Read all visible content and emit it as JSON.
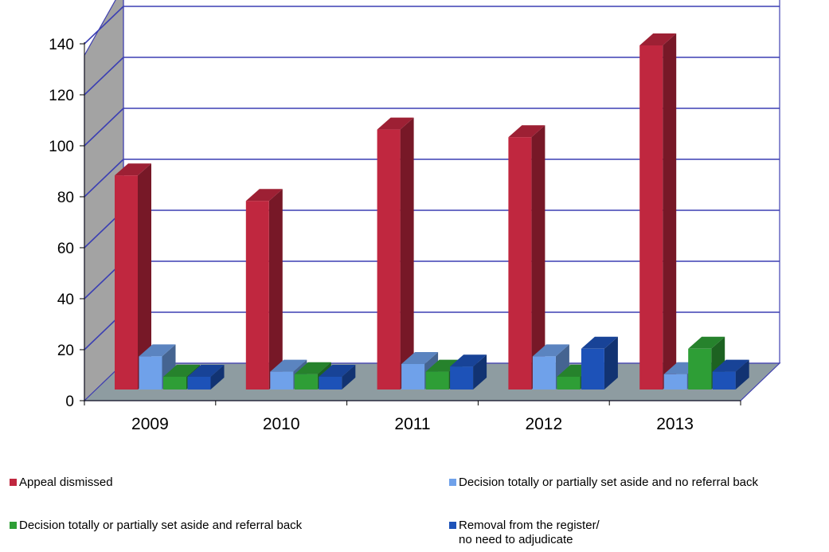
{
  "chart_data": {
    "type": "bar",
    "categories": [
      "2009",
      "2010",
      "2011",
      "2012",
      "2013"
    ],
    "series": [
      {
        "name": "Appeal dismissed",
        "values": [
          84,
          74,
          102,
          99,
          135
        ],
        "color": "#C0273F"
      },
      {
        "name": "Decision totally or partially set aside and no referral back",
        "values": [
          13,
          7,
          10,
          13,
          6
        ],
        "color": "#6FA1EA"
      },
      {
        "name": "Decision totally or partially set aside and referral back",
        "values": [
          5,
          6,
          7,
          5,
          16
        ],
        "color": "#2E9E36"
      },
      {
        "name": "Removal from the register/\nno need to adjudicate",
        "values": [
          5,
          5,
          9,
          16,
          7
        ],
        "color": "#1D52B8"
      }
    ],
    "ylim": [
      0,
      140
    ],
    "yticks": [
      0,
      20,
      40,
      60,
      80,
      100,
      120,
      140
    ],
    "grid": true,
    "legend": "bottom",
    "title": "",
    "xlabel": "",
    "ylabel": ""
  }
}
